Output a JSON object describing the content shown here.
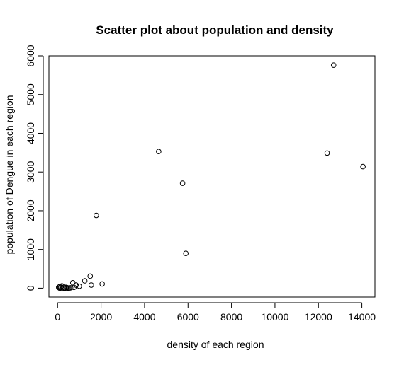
{
  "chart_data": {
    "type": "scatter",
    "title": "Scatter plot about population and density",
    "xlabel": "density of each region",
    "ylabel": "population of Dengue in each region",
    "xlim": [
      -400,
      14600
    ],
    "ylim": [
      -230,
      6000
    ],
    "x_ticks": [
      0,
      2000,
      4000,
      6000,
      8000,
      10000,
      12000,
      14000
    ],
    "y_ticks": [
      0,
      1000,
      2000,
      3000,
      4000,
      5000,
      6000
    ],
    "grid": false,
    "legend": "none",
    "marker": "open-circle",
    "points": [
      {
        "x": 12700,
        "y": 5760
      },
      {
        "x": 4650,
        "y": 3530
      },
      {
        "x": 12400,
        "y": 3490
      },
      {
        "x": 14050,
        "y": 3140
      },
      {
        "x": 5750,
        "y": 2710
      },
      {
        "x": 1780,
        "y": 1880
      },
      {
        "x": 5900,
        "y": 900
      },
      {
        "x": 1500,
        "y": 310
      },
      {
        "x": 1250,
        "y": 190
      },
      {
        "x": 700,
        "y": 140
      },
      {
        "x": 2050,
        "y": 110
      },
      {
        "x": 1550,
        "y": 80
      },
      {
        "x": 850,
        "y": 80
      },
      {
        "x": 1000,
        "y": 50
      },
      {
        "x": 750,
        "y": 20
      },
      {
        "x": 50,
        "y": 20
      },
      {
        "x": 100,
        "y": 40
      },
      {
        "x": 150,
        "y": 20
      },
      {
        "x": 200,
        "y": 60
      },
      {
        "x": 250,
        "y": 10
      },
      {
        "x": 300,
        "y": 30
      },
      {
        "x": 350,
        "y": 0
      },
      {
        "x": 400,
        "y": 20
      },
      {
        "x": 450,
        "y": 10
      },
      {
        "x": 550,
        "y": 5
      },
      {
        "x": 600,
        "y": 10
      },
      {
        "x": 100,
        "y": 0
      },
      {
        "x": 200,
        "y": 5
      },
      {
        "x": 300,
        "y": 0
      },
      {
        "x": 500,
        "y": 0
      }
    ]
  }
}
